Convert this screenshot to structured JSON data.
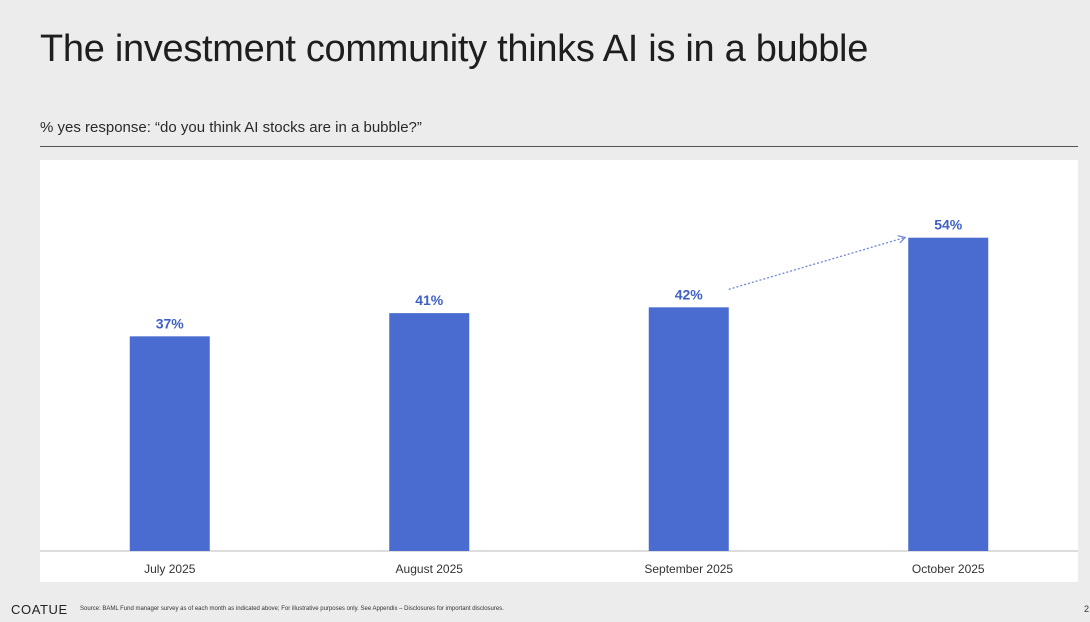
{
  "slide": {
    "title": "The investment community thinks AI is in a bubble",
    "subtitle": "% yes response: “do you think AI stocks are in a bubble?”",
    "logo": "COATUE",
    "source_note": "Source: BAML Fund manager survey as of each month as indicated above; For illustrative purposes only.  See Appendix – Disclosures for important disclosures.",
    "page_number": "2"
  },
  "chart_data": {
    "type": "bar",
    "categories": [
      "July 2025",
      "August 2025",
      "September 2025",
      "October 2025"
    ],
    "values": [
      37,
      41,
      42,
      54
    ],
    "value_labels": [
      "37%",
      "41%",
      "42%",
      "54%"
    ],
    "title": "",
    "xlabel": "",
    "ylabel": "",
    "ylim": [
      0,
      60
    ],
    "grid": false,
    "legend": "none",
    "annotations": [
      {
        "type": "dotted-arrow",
        "from_category": "September 2025",
        "to_category": "October 2025"
      }
    ],
    "colors": {
      "bar": "#4a6cd0",
      "label": "#3f5fc4",
      "arrow": "#6f86d6",
      "baseline": "#bbbbbb"
    }
  }
}
